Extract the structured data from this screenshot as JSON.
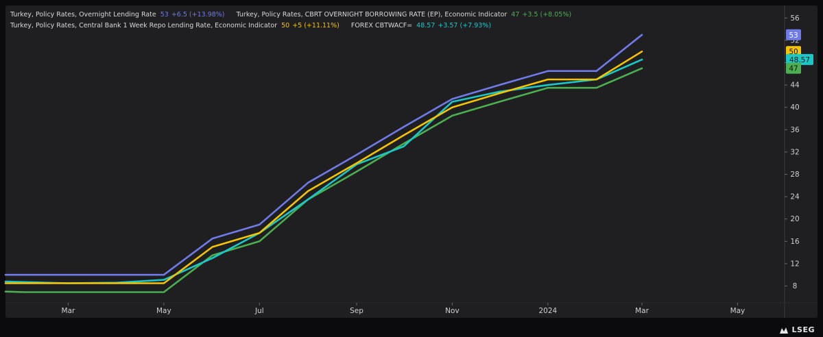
{
  "legend": [
    {
      "label": "Turkey, Policy Rates, Overnight Lending Rate",
      "value": "53",
      "change": "+6.5 (+13.98%)",
      "color": "#6f7be8"
    },
    {
      "label": "Turkey, Policy Rates, CBRT OVERNIGHT BORROWING RATE (EP), Economic Indicator",
      "value": "47",
      "change": "+3.5 (+8.05%)",
      "color": "#4caf50"
    },
    {
      "label": "Turkey, Policy Rates, Central Bank 1 Week Repo Lending Rate, Economic Indicator",
      "value": "50",
      "change": "+5 (+11.11%)",
      "color": "#f5c400"
    },
    {
      "label": "FOREX CBTWACF=",
      "value": "48.57",
      "change": "+3.57 (+7.93%)",
      "color": "#1bc8c8"
    }
  ],
  "brand": {
    "name": "LSEG"
  },
  "chart_data": {
    "type": "line",
    "grid": false,
    "x_ticks": [
      "Mar",
      "May",
      "Jul",
      "Sep",
      "Nov",
      "2024",
      "Mar",
      "May"
    ],
    "x_tick_dates": [
      "2023-03-01",
      "2023-05-01",
      "2023-07-01",
      "2023-09-01",
      "2023-11-01",
      "2024-01-01",
      "2024-03-01",
      "2024-05-01"
    ],
    "x_range": [
      "2023-01-20",
      "2024-05-31"
    ],
    "y_ticks": [
      8,
      12,
      16,
      20,
      24,
      28,
      32,
      36,
      40,
      44,
      48,
      52,
      56
    ],
    "ylim": [
      5,
      58
    ],
    "y_axis_position": "right",
    "series": [
      {
        "name": "Turkey, Policy Rates, Overnight Lending Rate",
        "color": "#6f7be8",
        "last_label": "53",
        "points": [
          [
            "2023-01-20",
            10.0
          ],
          [
            "2023-05-01",
            10.0
          ],
          [
            "2023-06-01",
            16.5
          ],
          [
            "2023-07-01",
            19.0
          ],
          [
            "2023-08-01",
            26.5
          ],
          [
            "2023-09-01",
            31.5
          ],
          [
            "2023-10-01",
            36.5
          ],
          [
            "2023-11-01",
            41.5
          ],
          [
            "2023-12-01",
            44.0
          ],
          [
            "2024-01-01",
            46.5
          ],
          [
            "2024-02-01",
            46.5
          ],
          [
            "2024-03-01",
            53.0
          ]
        ]
      },
      {
        "name": "Turkey, Policy Rates, CBRT OVERNIGHT BORROWING RATE (EP), Economic Indicator",
        "color": "#4caf50",
        "last_label": "47",
        "points": [
          [
            "2023-01-20",
            7.0
          ],
          [
            "2023-02-01",
            6.9
          ],
          [
            "2023-05-01",
            6.9
          ],
          [
            "2023-06-01",
            13.5
          ],
          [
            "2023-07-01",
            16.0
          ],
          [
            "2023-08-01",
            23.5
          ],
          [
            "2023-09-01",
            28.5
          ],
          [
            "2023-10-01",
            33.5
          ],
          [
            "2023-11-01",
            38.5
          ],
          [
            "2023-12-01",
            41.0
          ],
          [
            "2024-01-01",
            43.5
          ],
          [
            "2024-02-01",
            43.5
          ],
          [
            "2024-03-01",
            47.0
          ]
        ]
      },
      {
        "name": "Turkey, Policy Rates, Central Bank 1 Week Repo Lending Rate, Economic Indicator",
        "color": "#f5c400",
        "last_label": "50",
        "points": [
          [
            "2023-01-20",
            8.5
          ],
          [
            "2023-03-01",
            8.5
          ],
          [
            "2023-05-01",
            8.5
          ],
          [
            "2023-06-01",
            15.0
          ],
          [
            "2023-07-01",
            17.5
          ],
          [
            "2023-08-01",
            25.0
          ],
          [
            "2023-09-01",
            30.0
          ],
          [
            "2023-10-01",
            35.0
          ],
          [
            "2023-11-01",
            40.0
          ],
          [
            "2023-12-01",
            42.5
          ],
          [
            "2024-01-01",
            45.0
          ],
          [
            "2024-02-01",
            45.0
          ],
          [
            "2024-03-01",
            50.0
          ]
        ]
      },
      {
        "name": "FOREX CBTWACF=",
        "color": "#1bc8c8",
        "last_label": "48.57",
        "points": [
          [
            "2023-01-20",
            8.8
          ],
          [
            "2023-03-01",
            8.5
          ],
          [
            "2023-04-01",
            8.6
          ],
          [
            "2023-05-01",
            9.1
          ],
          [
            "2023-06-01",
            13.0
          ],
          [
            "2023-07-01",
            17.5
          ],
          [
            "2023-08-01",
            23.5
          ],
          [
            "2023-09-01",
            29.8
          ],
          [
            "2023-10-01",
            33.0
          ],
          [
            "2023-11-01",
            41.0
          ],
          [
            "2023-12-01",
            42.8
          ],
          [
            "2024-01-01",
            44.0
          ],
          [
            "2024-02-01",
            45.0
          ],
          [
            "2024-03-01",
            48.57
          ]
        ]
      }
    ]
  }
}
